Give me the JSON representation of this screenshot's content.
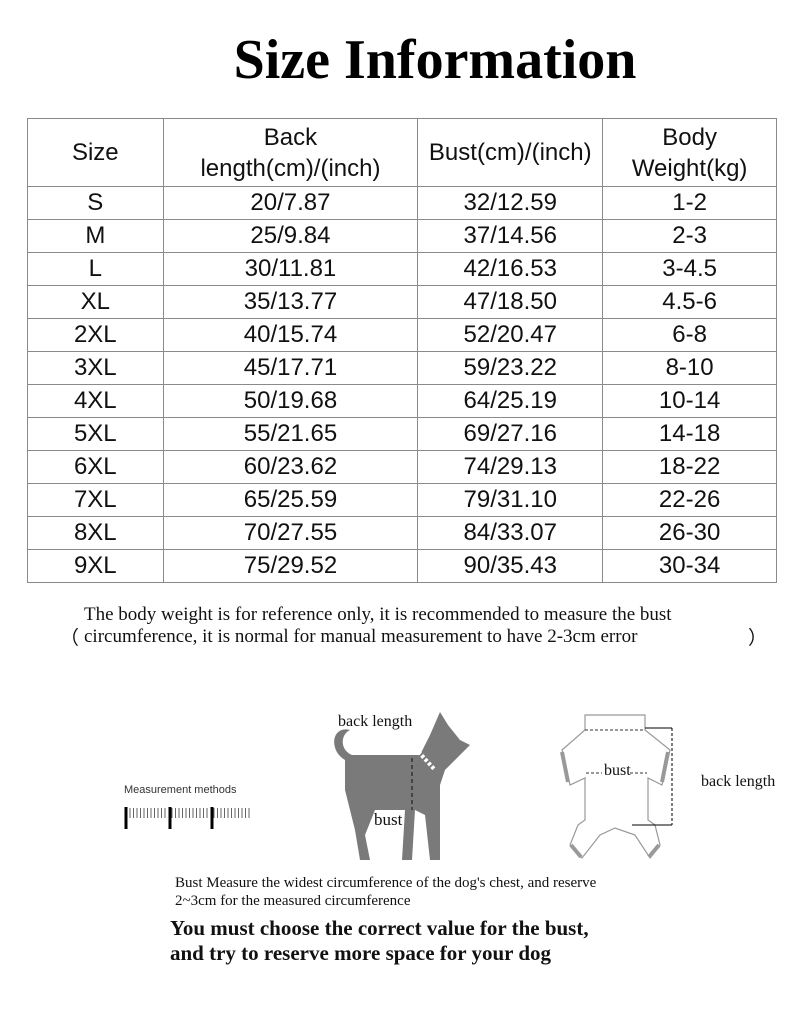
{
  "title": "Size Information",
  "table": {
    "headers": [
      "Size",
      "Back length(cm)/(inch)",
      "Bust(cm)/(inch)",
      "Body Weight(kg)"
    ],
    "header_lines": [
      [
        "Size"
      ],
      [
        "Back",
        "length(cm)/(inch)"
      ],
      [
        "Bust(cm)/(inch)"
      ],
      [
        "Body",
        "Weight(kg)"
      ]
    ],
    "rows": [
      [
        "S",
        "20/7.87",
        "32/12.59",
        "1-2"
      ],
      [
        "M",
        "25/9.84",
        "37/14.56",
        "2-3"
      ],
      [
        "L",
        "30/11.81",
        "42/16.53",
        "3-4.5"
      ],
      [
        "XL",
        "35/13.77",
        "47/18.50",
        "4.5-6"
      ],
      [
        "2XL",
        "40/15.74",
        "52/20.47",
        "6-8"
      ],
      [
        "3XL",
        "45/17.71",
        "59/23.22",
        "8-10"
      ],
      [
        "4XL",
        "50/19.68",
        "64/25.19",
        "10-14"
      ],
      [
        "5XL",
        "55/21.65",
        "69/27.16",
        "14-18"
      ],
      [
        "6XL",
        "60/23.62",
        "74/29.13",
        "18-22"
      ],
      [
        "7XL",
        "65/25.59",
        "79/31.10",
        "22-26"
      ],
      [
        "8XL",
        "70/27.55",
        "84/33.07",
        "26-30"
      ],
      [
        "9XL",
        "75/29.52",
        "90/35.43",
        "30-34"
      ]
    ]
  },
  "note": {
    "open": "（",
    "close": "）",
    "text": "The body weight is for reference only, it is recommended to measure the bust circumference, it is normal for manual measurement to have 2-3cm error"
  },
  "diagram": {
    "measurement_methods": "Measurement methods",
    "dog_back_length": "back length",
    "dog_bust": "bust",
    "clothes_bust": "bust",
    "clothes_back_length": "back length",
    "silhouette_color": "#7a7a7a"
  },
  "description": "Bust Measure the widest circumference of the dog's chest, and reserve 2~3cm for the measured circumference",
  "emphasis": [
    "You must choose the correct value for the bust,",
    "and try to reserve more space for your dog"
  ]
}
